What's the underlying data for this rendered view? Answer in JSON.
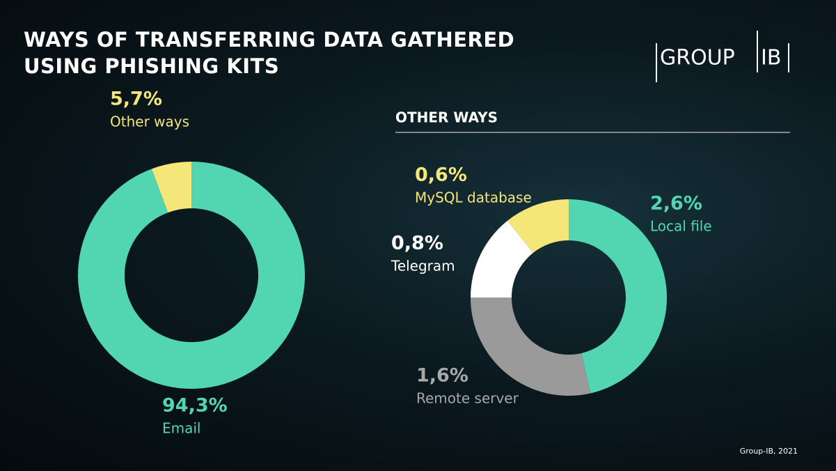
{
  "title": "WAYS OF TRANSFERRING DATA GATHERED USING PHISHING KITS",
  "logo": {
    "left": "GROUP",
    "right": "IB"
  },
  "source": "Group-IB, 2021",
  "chart_data": [
    {
      "type": "pie",
      "categories": [
        "Email",
        "Other ways"
      ],
      "values": [
        94.3,
        5.7
      ],
      "value_labels": [
        "94,3%",
        "5,7%"
      ],
      "colors": [
        "#52d6b2",
        "#f5e67a"
      ]
    },
    {
      "type": "pie",
      "title": "OTHER WAYS",
      "categories": [
        "Local file",
        "Remote server",
        "Telegram",
        "MySQL database"
      ],
      "values": [
        2.6,
        1.6,
        0.8,
        0.6
      ],
      "value_labels": [
        "2,6%",
        "1,6%",
        "0,8%",
        "0,6%"
      ],
      "colors": [
        "#52d6b2",
        "#9a9a9a",
        "#ffffff",
        "#f5e67a"
      ]
    }
  ]
}
